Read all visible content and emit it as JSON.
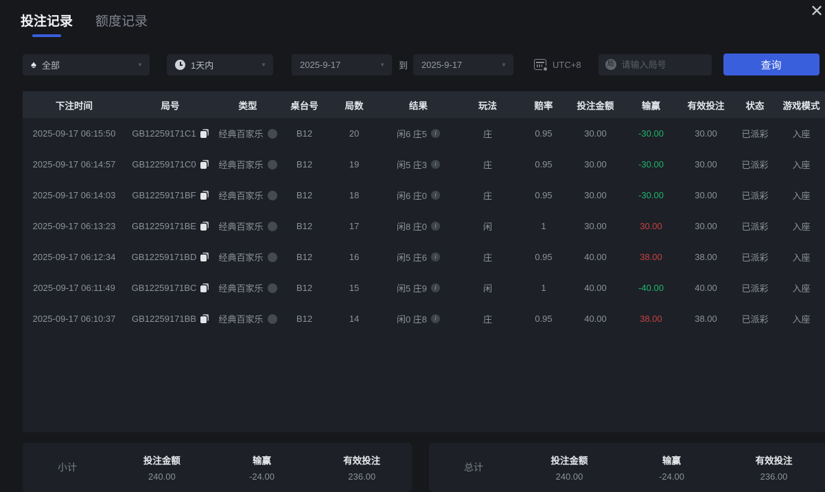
{
  "page": {
    "close_icon": "✕"
  },
  "tabs": [
    {
      "label": "投注记录",
      "active": true
    },
    {
      "label": "额度记录",
      "active": false
    }
  ],
  "filters": {
    "game_select": {
      "value": "全部",
      "icon": "♠"
    },
    "time_select": {
      "value": "1天内"
    },
    "date_from": "2025-9-17",
    "to_label": "到",
    "date_to": "2025-9-17",
    "timezone": "UTC+8",
    "round_input_icon": "局",
    "round_input_placeholder": "请输入局号",
    "search_button": "查询",
    "dropdown_arrow": "▼"
  },
  "table": {
    "columns": [
      "下注时间",
      "局号",
      "类型",
      "桌台号",
      "局数",
      "结果",
      "玩法",
      "赔率",
      "投注金额",
      "输赢",
      "有效投注",
      "状态",
      "游戏模式"
    ],
    "rows": [
      {
        "time": "2025-09-17 06:15:50",
        "round_id": "GB12259171C1",
        "type": "经典百家乐",
        "table_no": "B12",
        "round_no": "20",
        "result": "闲6 庄5",
        "play": "庄",
        "odds": "0.95",
        "bet": "30.00",
        "win_loss": "-30.00",
        "win_loss_color": "green",
        "valid_bet": "30.00",
        "status": "已派彩",
        "mode": "入座"
      },
      {
        "time": "2025-09-17 06:14:57",
        "round_id": "GB12259171C0",
        "type": "经典百家乐",
        "table_no": "B12",
        "round_no": "19",
        "result": "闲5 庄3",
        "play": "庄",
        "odds": "0.95",
        "bet": "30.00",
        "win_loss": "-30.00",
        "win_loss_color": "green",
        "valid_bet": "30.00",
        "status": "已派彩",
        "mode": "入座"
      },
      {
        "time": "2025-09-17 06:14:03",
        "round_id": "GB12259171BF",
        "type": "经典百家乐",
        "table_no": "B12",
        "round_no": "18",
        "result": "闲6 庄0",
        "play": "庄",
        "odds": "0.95",
        "bet": "30.00",
        "win_loss": "-30.00",
        "win_loss_color": "green",
        "valid_bet": "30.00",
        "status": "已派彩",
        "mode": "入座"
      },
      {
        "time": "2025-09-17 06:13:23",
        "round_id": "GB12259171BE",
        "type": "经典百家乐",
        "table_no": "B12",
        "round_no": "17",
        "result": "闲8 庄0",
        "play": "闲",
        "odds": "1",
        "bet": "30.00",
        "win_loss": "30.00",
        "win_loss_color": "red",
        "valid_bet": "30.00",
        "status": "已派彩",
        "mode": "入座"
      },
      {
        "time": "2025-09-17 06:12:34",
        "round_id": "GB12259171BD",
        "type": "经典百家乐",
        "table_no": "B12",
        "round_no": "16",
        "result": "闲5 庄6",
        "play": "庄",
        "odds": "0.95",
        "bet": "40.00",
        "win_loss": "38.00",
        "win_loss_color": "red",
        "valid_bet": "38.00",
        "status": "已派彩",
        "mode": "入座"
      },
      {
        "time": "2025-09-17 06:11:49",
        "round_id": "GB12259171BC",
        "type": "经典百家乐",
        "table_no": "B12",
        "round_no": "15",
        "result": "闲5 庄9",
        "play": "闲",
        "odds": "1",
        "bet": "40.00",
        "win_loss": "-40.00",
        "win_loss_color": "green",
        "valid_bet": "40.00",
        "status": "已派彩",
        "mode": "入座"
      },
      {
        "time": "2025-09-17 06:10:37",
        "round_id": "GB12259171BB",
        "type": "经典百家乐",
        "table_no": "B12",
        "round_no": "14",
        "result": "闲0 庄8",
        "play": "庄",
        "odds": "0.95",
        "bet": "40.00",
        "win_loss": "38.00",
        "win_loss_color": "red",
        "valid_bet": "38.00",
        "status": "已派彩",
        "mode": "入座"
      }
    ]
  },
  "summary": {
    "labels": {
      "bet": "投注金额",
      "win_loss": "输赢",
      "valid": "有效投注"
    },
    "subtotal": {
      "label": "小计",
      "bet": "240.00",
      "win_loss": "-24.00",
      "win_loss_color": "green",
      "valid": "236.00"
    },
    "total": {
      "label": "总计",
      "bet": "240.00",
      "win_loss": "-24.00",
      "win_loss_color": "green",
      "valid": "236.00"
    }
  },
  "colors": {
    "accent_blue": "#3a5fdc",
    "win_red": "#c64242",
    "loss_green": "#1eb66b"
  }
}
